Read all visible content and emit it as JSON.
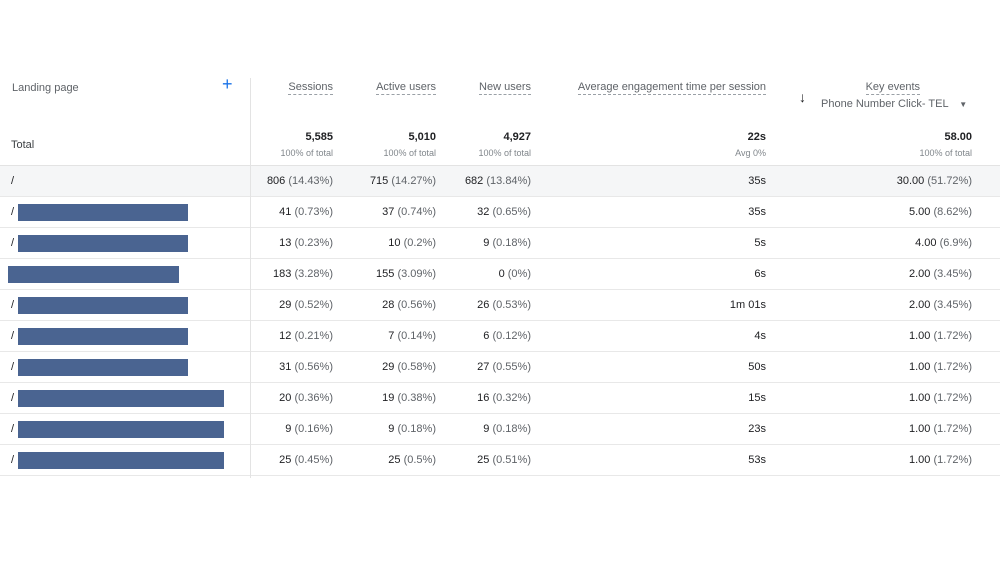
{
  "header": {
    "dimension": "Landing page",
    "add_icon": "plus-icon",
    "columns": [
      "Sessions",
      "Active users",
      "New users",
      "Average engagement time per session",
      "Key events"
    ],
    "sort_icon": "arrow-down-icon",
    "key_event_select": "Phone Number Click- TEL"
  },
  "total": {
    "label": "Total",
    "sessions": "5,585",
    "sessions_sub": "100% of total",
    "active": "5,010",
    "active_sub": "100% of total",
    "new": "4,927",
    "new_sub": "100% of total",
    "avg": "22s",
    "avg_sub": "Avg 0%",
    "key": "58.00",
    "key_sub": "100% of total"
  },
  "rows": [
    {
      "page": "/",
      "s": "806",
      "sp": "(14.43%)",
      "a": "715",
      "ap": "(14.27%)",
      "n": "682",
      "np": "(13.84%)",
      "t": "35s",
      "k": "30.00",
      "kp": "(51.72%)"
    },
    {
      "page": "/",
      "s": "41",
      "sp": "(0.73%)",
      "a": "37",
      "ap": "(0.74%)",
      "n": "32",
      "np": "(0.65%)",
      "t": "35s",
      "k": "5.00",
      "kp": "(8.62%)"
    },
    {
      "page": "/",
      "s": "13",
      "sp": "(0.23%)",
      "a": "10",
      "ap": "(0.2%)",
      "n": "9",
      "np": "(0.18%)",
      "t": "5s",
      "k": "4.00",
      "kp": "(6.9%)"
    },
    {
      "page": "",
      "s": "183",
      "sp": "(3.28%)",
      "a": "155",
      "ap": "(3.09%)",
      "n": "0",
      "np": "(0%)",
      "t": "6s",
      "k": "2.00",
      "kp": "(3.45%)"
    },
    {
      "page": "/",
      "s": "29",
      "sp": "(0.52%)",
      "a": "28",
      "ap": "(0.56%)",
      "n": "26",
      "np": "(0.53%)",
      "t": "1m 01s",
      "k": "2.00",
      "kp": "(3.45%)"
    },
    {
      "page": "/",
      "s": "12",
      "sp": "(0.21%)",
      "a": "7",
      "ap": "(0.14%)",
      "n": "6",
      "np": "(0.12%)",
      "t": "4s",
      "k": "1.00",
      "kp": "(1.72%)"
    },
    {
      "page": "/",
      "s": "31",
      "sp": "(0.56%)",
      "a": "29",
      "ap": "(0.58%)",
      "n": "27",
      "np": "(0.55%)",
      "t": "50s",
      "k": "1.00",
      "kp": "(1.72%)"
    },
    {
      "page": "/",
      "s": "20",
      "sp": "(0.36%)",
      "a": "19",
      "ap": "(0.38%)",
      "n": "16",
      "np": "(0.32%)",
      "t": "15s",
      "k": "1.00",
      "kp": "(1.72%)"
    },
    {
      "page": "/",
      "s": "9",
      "sp": "(0.16%)",
      "a": "9",
      "ap": "(0.18%)",
      "n": "9",
      "np": "(0.18%)",
      "t": "23s",
      "k": "1.00",
      "kp": "(1.72%)"
    },
    {
      "page": "/",
      "s": "25",
      "sp": "(0.45%)",
      "a": "25",
      "ap": "(0.5%)",
      "n": "25",
      "np": "(0.51%)",
      "t": "53s",
      "k": "1.00",
      "kp": "(1.72%)"
    }
  ],
  "colors": {
    "redaction": "#4a6491",
    "accent": "#1a73e8"
  }
}
